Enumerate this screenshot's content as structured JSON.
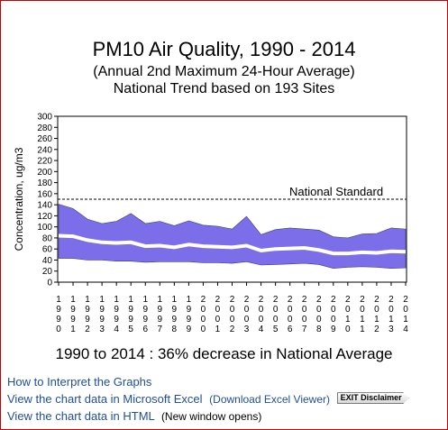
{
  "title": "PM10 Air Quality, 1990 - 2014",
  "subtitle1": "(Annual 2nd Maximum 24-Hour Average)",
  "subtitle2": "National Trend based on 193 Sites",
  "summary": "1990 to 2014 :  36% decrease in National Average",
  "links": {
    "interpret": "How to Interpret the Graphs",
    "excel": "View the chart data in Microsoft Excel",
    "excel_viewer": "(Download Excel Viewer)",
    "exit_disclaimer": "EXIT Disclaimer",
    "html": "View the chart data in HTML",
    "new_window": "(New window opens)"
  },
  "colors": {
    "band": "#7b6ee8",
    "mean_line": "#ffffff",
    "standard_line": "#000000",
    "frame": "#cc0000",
    "link": "#1f4e9c"
  },
  "chart_data": {
    "type": "area",
    "ylabel": "Concentration, ug/m3",
    "ylim": [
      0,
      300
    ],
    "yticks": [
      0,
      20,
      40,
      60,
      80,
      100,
      120,
      140,
      160,
      180,
      200,
      220,
      240,
      260,
      280,
      300
    ],
    "x": [
      1990,
      1991,
      1992,
      1993,
      1994,
      1995,
      1996,
      1997,
      1998,
      1999,
      2000,
      2001,
      2002,
      2003,
      2004,
      2005,
      2006,
      2007,
      2008,
      2009,
      2010,
      2011,
      2012,
      2013,
      2014
    ],
    "series": [
      {
        "role": "upper",
        "values": [
          141,
          133,
          114,
          106,
          110,
          124,
          106,
          110,
          102,
          111,
          103,
          101,
          96,
          119,
          86,
          95,
          98,
          96,
          94,
          82,
          80,
          87,
          88,
          98,
          96
        ]
      },
      {
        "role": "mean",
        "values": [
          84,
          83,
          76,
          72,
          71,
          72,
          65,
          66,
          63,
          68,
          65,
          64,
          63,
          66,
          57,
          60,
          61,
          62,
          58,
          52,
          52,
          54,
          53,
          56,
          55
        ]
      },
      {
        "role": "lower",
        "values": [
          43,
          43,
          40,
          40,
          38,
          38,
          36,
          37,
          37,
          37,
          35,
          35,
          34,
          37,
          31,
          32,
          33,
          34,
          32,
          25,
          27,
          28,
          27,
          25,
          26
        ]
      }
    ],
    "standard": {
      "label": "National Standard",
      "value": 150
    },
    "grid": false
  }
}
